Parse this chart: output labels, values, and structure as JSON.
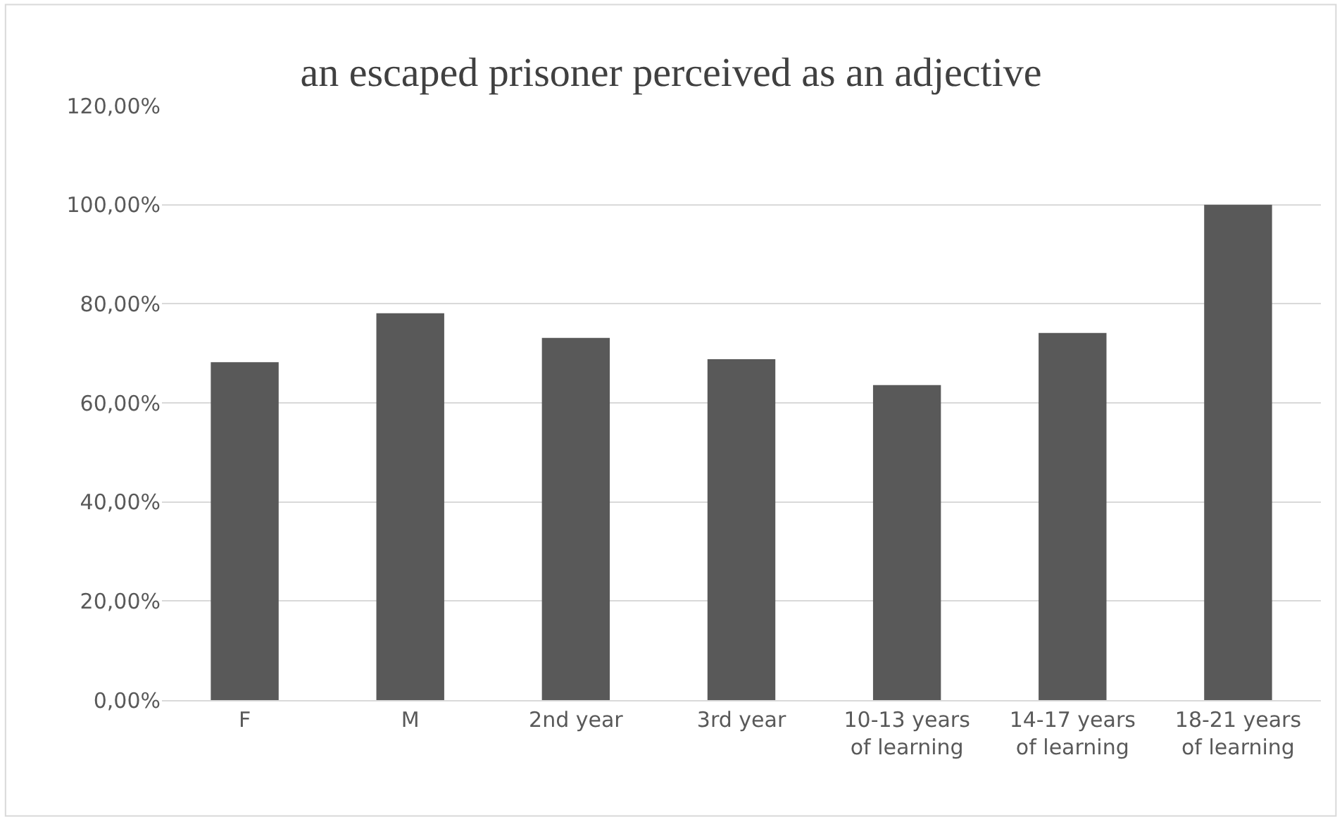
{
  "chart_data": {
    "type": "bar",
    "title": "an escaped prisoner perceived as an adjective",
    "categories": [
      "F",
      "M",
      "2nd year",
      "3rd year",
      "10-13 years\nof learning",
      "14-17 years\nof learning",
      "18-21 years\nof learning"
    ],
    "values": [
      68.2,
      78.1,
      73.1,
      68.8,
      63.6,
      74.1,
      100
    ],
    "color": "#595959",
    "ylim": [
      0,
      120
    ],
    "yticks": [
      {
        "value": 0,
        "label": "0,00%"
      },
      {
        "value": 20,
        "label": "20,00%"
      },
      {
        "value": 40,
        "label": "40,00%"
      },
      {
        "value": 60,
        "label": "60,00%"
      },
      {
        "value": 80,
        "label": "80,00%"
      },
      {
        "value": 100,
        "label": "100,00%"
      },
      {
        "value": 120,
        "label": "120,00%"
      }
    ],
    "grid": "y",
    "legend": false
  }
}
